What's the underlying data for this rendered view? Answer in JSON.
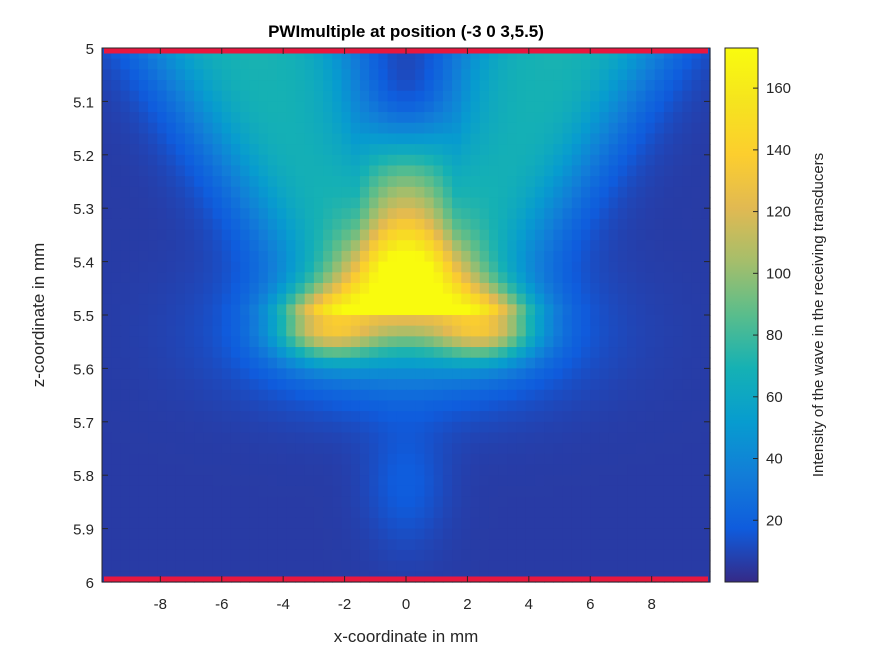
{
  "chart_data": {
    "type": "heatmap",
    "title": "PWImultiple at position (-3  0  3,5.5)",
    "xlabel": "x-coordinate in mm",
    "ylabel": "z-coordinate in mm",
    "xlim": [
      -9.9,
      9.9
    ],
    "ylim": [
      5.0,
      6.0
    ],
    "y_reversed": true,
    "xticks": [
      -8,
      -6,
      -4,
      -2,
      0,
      2,
      4,
      6,
      8
    ],
    "yticks": [
      5,
      5.1,
      5.2,
      5.3,
      5.4,
      5.5,
      5.6,
      5.7,
      5.8,
      5.9,
      6
    ],
    "ytick_labels": [
      "5",
      "5.1",
      "5.2",
      "5.3",
      "5.4",
      "5.5",
      "5.6",
      "5.7",
      "5.8",
      "5.9",
      "6"
    ],
    "colorbar": {
      "label": "Intensity of the wave in the receiving transducers",
      "clim": [
        0,
        173
      ],
      "ticks": [
        20,
        40,
        60,
        80,
        100,
        120,
        140,
        160
      ],
      "colormap": "parula"
    },
    "grid": {
      "nx": 66,
      "nz": 50
    },
    "transducer_lines": {
      "z": [
        5.0,
        6.0
      ],
      "color": "#e8173f"
    }
  }
}
